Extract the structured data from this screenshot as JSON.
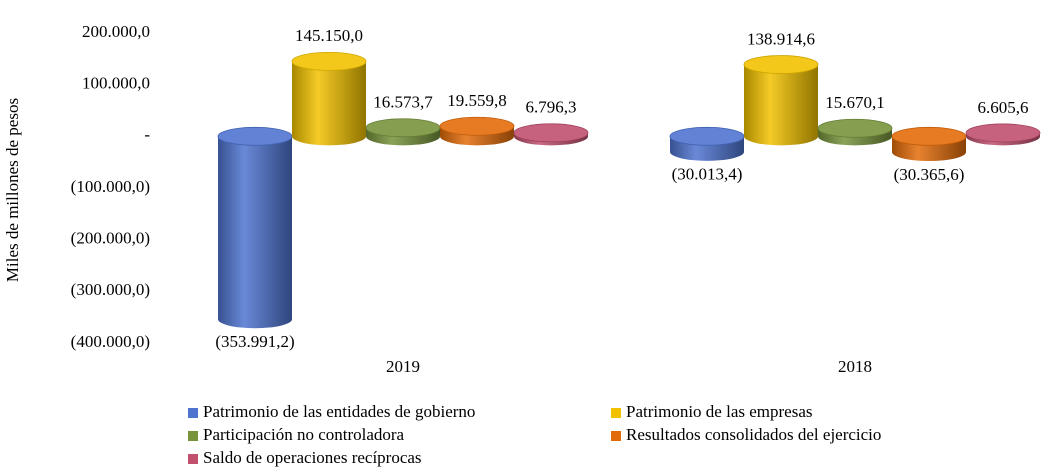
{
  "chart_data": {
    "type": "bar",
    "y_label": "Miles de millones  de pesos",
    "categories": [
      "2019",
      "2018"
    ],
    "series": [
      {
        "name": "Patrimonio de las entidades de gobierno",
        "color": "#4f74d0",
        "values": [
          -353991.2,
          -30013.4
        ],
        "value_labels": [
          "(353.991,2)",
          "(30.013,4)"
        ]
      },
      {
        "name": "Patrimonio de las empresas",
        "color": "#f2c200",
        "values": [
          145150.0,
          138914.6
        ],
        "value_labels": [
          "145.150,0",
          "138.914,6"
        ]
      },
      {
        "name": "Participación no controladora",
        "color": "#77933c",
        "values": [
          16573.7,
          15670.1
        ],
        "value_labels": [
          "16.573,7",
          "15.670,1"
        ]
      },
      {
        "name": "Resultados consolidados del ejercicio",
        "color": "#e36c0a",
        "values": [
          19559.8,
          -30365.6
        ],
        "value_labels": [
          "19.559,8",
          "(30.365,6)"
        ]
      },
      {
        "name": "Saldo de operaciones recíprocas",
        "color": "#c0506e",
        "values": [
          6796.3,
          6605.6
        ],
        "value_labels": [
          "6.796,3",
          "6.605,6"
        ]
      }
    ],
    "ylim": [
      -400000,
      200000
    ],
    "yticks": [
      {
        "value": 200000,
        "label": "200.000,0"
      },
      {
        "value": 100000,
        "label": "100.000,0"
      },
      {
        "value": 0,
        "label": "-"
      },
      {
        "value": -100000,
        "label": "(100.000,0)"
      },
      {
        "value": -200000,
        "label": "(200.000,0)"
      },
      {
        "value": -300000,
        "label": "(300.000,0)"
      },
      {
        "value": -400000,
        "label": "(400.000,0)"
      }
    ],
    "grid": false,
    "legend": "bottom"
  }
}
